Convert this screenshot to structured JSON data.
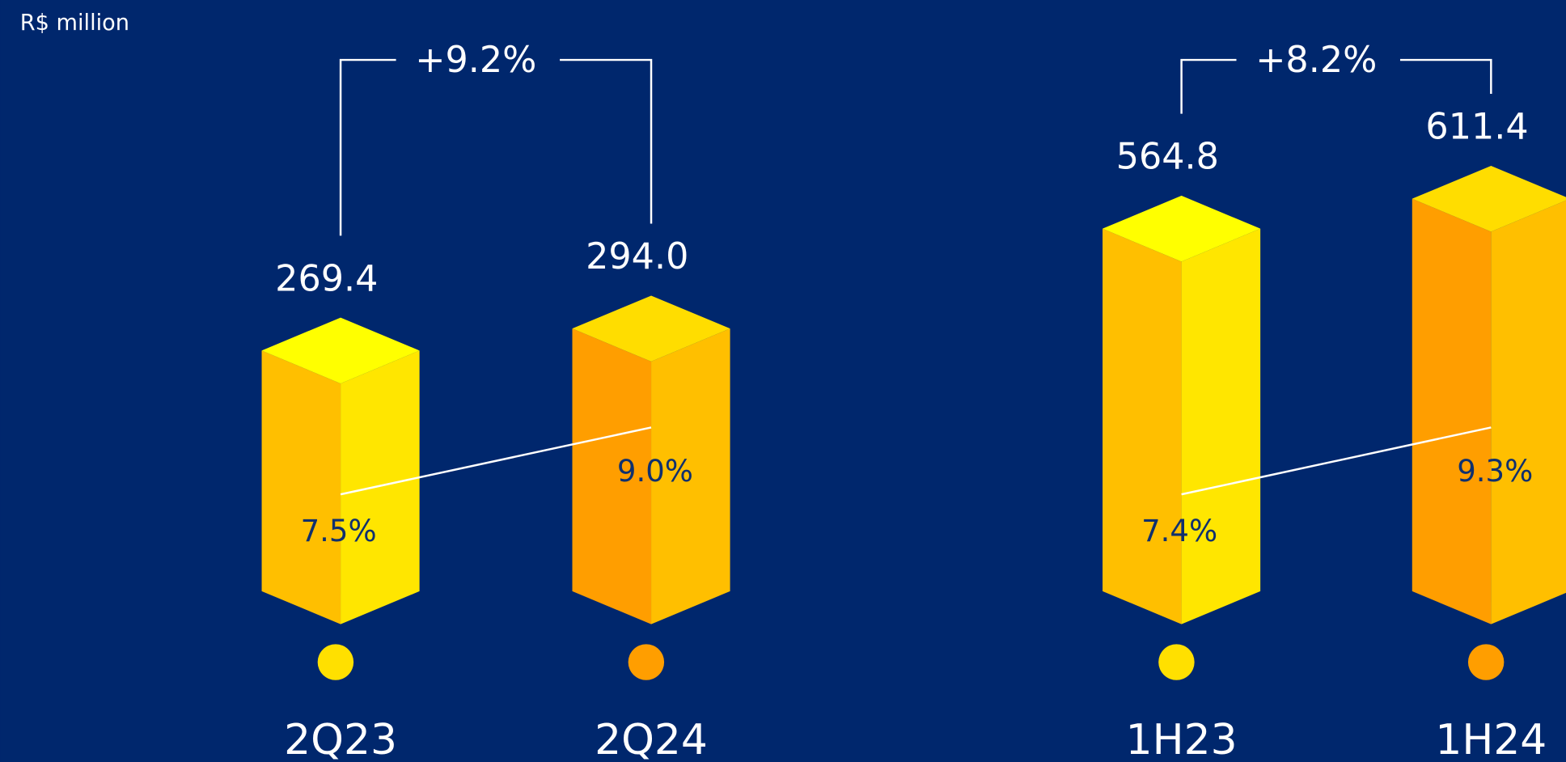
{
  "unit_label": "R$ million",
  "chart_data": [
    {
      "type": "bar",
      "annotation": "+9.2%",
      "categories": [
        "2Q23",
        "2Q24"
      ],
      "values": [
        269.4,
        294.0
      ],
      "value_labels": [
        "269.4",
        "294.0"
      ],
      "margins": [
        7.5,
        9.0
      ],
      "margin_labels": [
        "7.5%",
        "9.0%"
      ],
      "colors": [
        [
          "#ffbf00",
          "#ffe600",
          "#ffff00",
          "#ffe000"
        ],
        [
          "#ff9e00",
          "#ffbf00",
          "#ffdd00",
          "#ff9e00"
        ]
      ]
    },
    {
      "type": "bar",
      "annotation": "+8.2%",
      "categories": [
        "1H23",
        "1H24"
      ],
      "values": [
        564.8,
        611.4
      ],
      "value_labels": [
        "564.8",
        "611.4"
      ],
      "margins": [
        7.4,
        9.3
      ],
      "margin_labels": [
        "7.4%",
        "9.3%"
      ],
      "colors": [
        [
          "#ffbf00",
          "#ffe600",
          "#ffff00",
          "#ffe000"
        ],
        [
          "#ff9e00",
          "#ffbf00",
          "#ffdd00",
          "#ff9e00"
        ]
      ]
    }
  ]
}
